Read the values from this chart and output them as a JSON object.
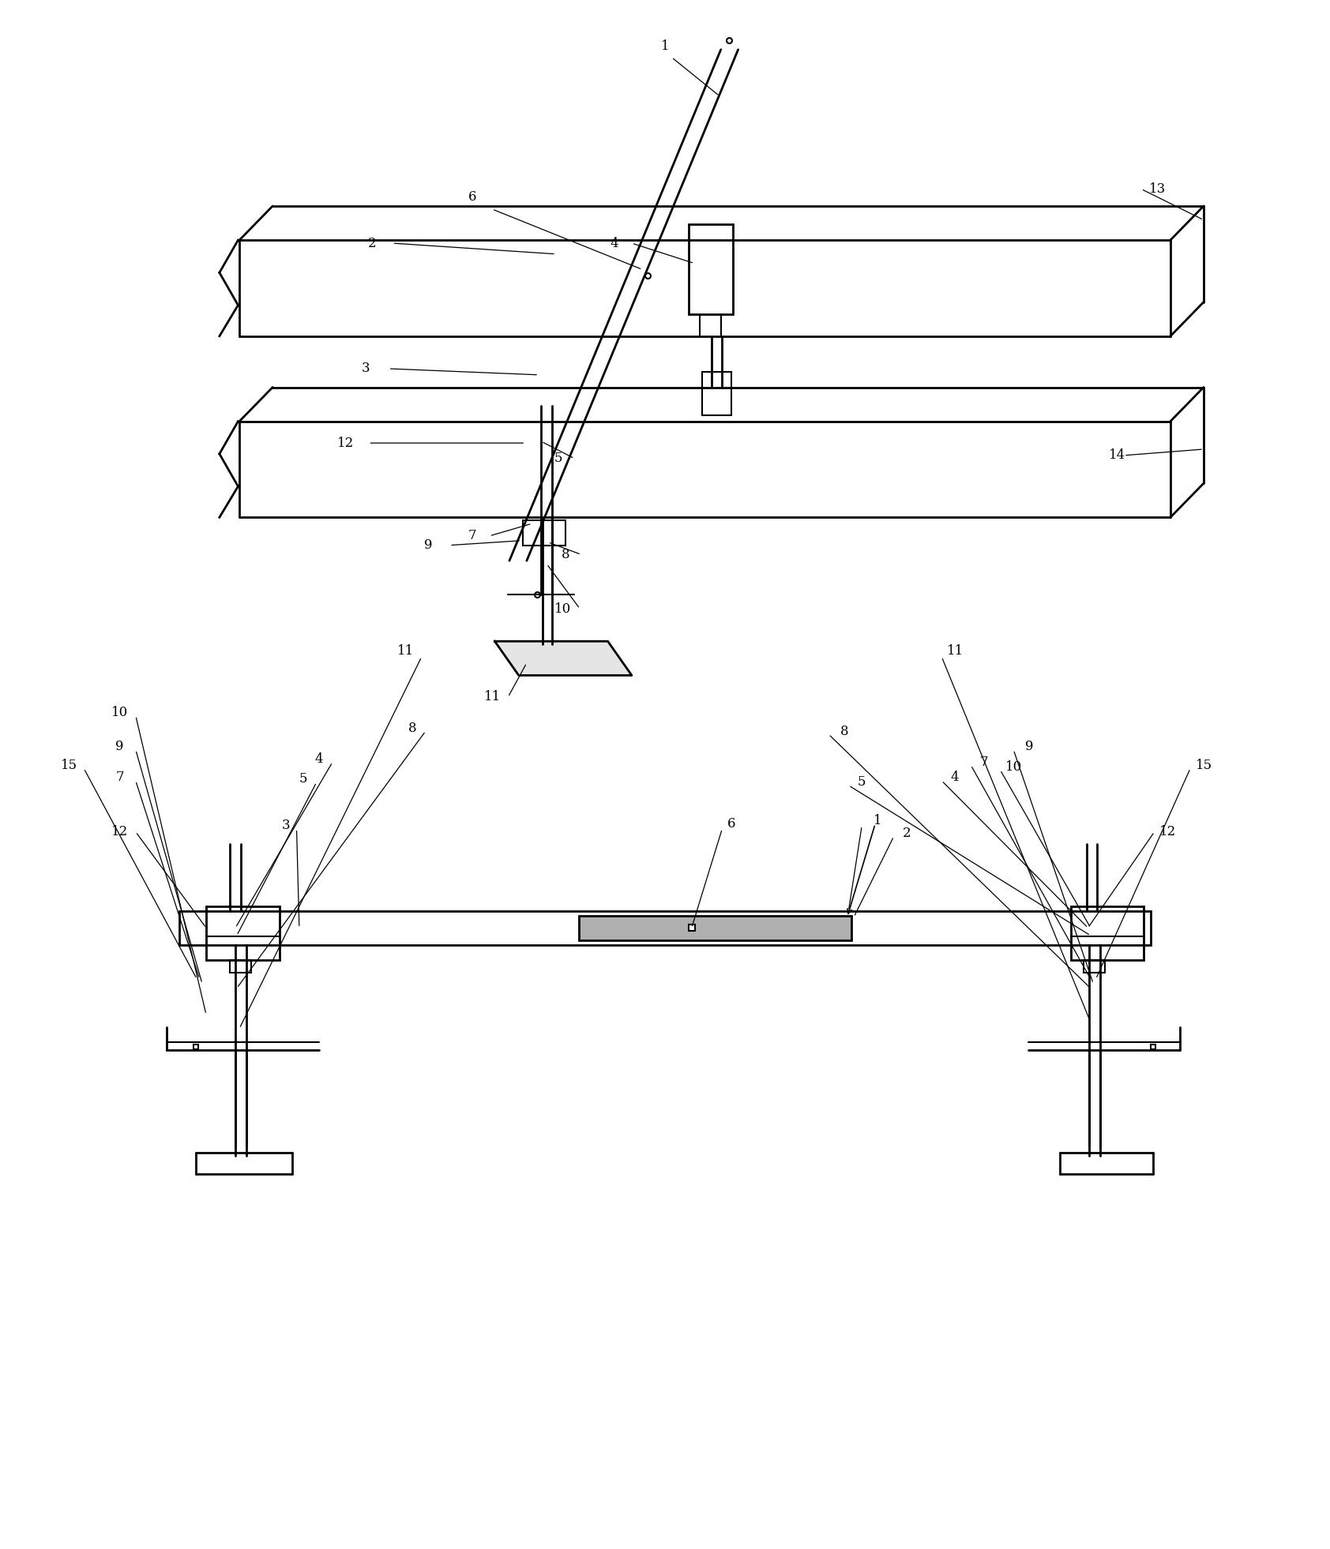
{
  "bg_color": "#ffffff",
  "line_color": "#000000",
  "fig_width": 16.84,
  "fig_height": 19.62
}
